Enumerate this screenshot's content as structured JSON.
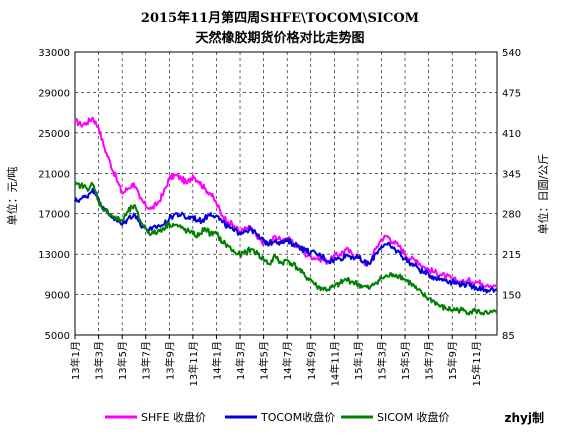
{
  "chart_data": {
    "type": "line",
    "title": "2015年11月第四周SHFE\\TOCOM\\SICOM",
    "subtitle": "天然橡胶期货价格对比走势图",
    "ylabel_left": "单位：元/吨",
    "ylabel_right": "单位：日圆/公斤",
    "yticks_left": [
      "33000",
      "29000",
      "25000",
      "21000",
      "17000",
      "13000",
      "9000",
      "5000"
    ],
    "yticks_right": [
      "540",
      "475",
      "410",
      "345",
      "280",
      "215",
      "150",
      "85"
    ],
    "ylim_left": [
      5000,
      33000
    ],
    "ylim_right": [
      85,
      540
    ],
    "x_labels": [
      "13年1月",
      "13年3月",
      "13年5月",
      "13年7月",
      "13年9月",
      "13年11月",
      "14年1月",
      "14年3月",
      "14年5月",
      "14年7月",
      "14年9月",
      "14年11月",
      "15年1月",
      "15年3月",
      "15年5月",
      "15年7月",
      "15年9月",
      "15年11月"
    ],
    "x_range_months": [
      0,
      35.8
    ],
    "credit": "zhyj制",
    "grid": true,
    "legend_position": "bottom",
    "series": [
      {
        "name": "SHFE 收盘价",
        "axis": "left",
        "color": "#ff00ff",
        "points": [
          [
            0,
            26200
          ],
          [
            0.5,
            25800
          ],
          [
            1,
            26000
          ],
          [
            1.5,
            26500
          ],
          [
            2,
            25500
          ],
          [
            2.5,
            23500
          ],
          [
            3,
            22000
          ],
          [
            3.5,
            20500
          ],
          [
            4,
            19000
          ],
          [
            4.5,
            19500
          ],
          [
            5,
            20000
          ],
          [
            5.5,
            18500
          ],
          [
            6,
            17800
          ],
          [
            6.5,
            17500
          ],
          [
            7,
            18000
          ],
          [
            7.5,
            19000
          ],
          [
            8,
            20500
          ],
          [
            8.5,
            20800
          ],
          [
            9,
            20500
          ],
          [
            9.5,
            20000
          ],
          [
            10,
            20800
          ],
          [
            10.5,
            20200
          ],
          [
            11,
            19500
          ],
          [
            11.5,
            19000
          ],
          [
            12,
            18000
          ],
          [
            12.5,
            16800
          ],
          [
            13,
            16200
          ],
          [
            13.5,
            15800
          ],
          [
            14,
            15200
          ],
          [
            14.5,
            15500
          ],
          [
            15,
            15600
          ],
          [
            15.5,
            14500
          ],
          [
            16,
            14200
          ],
          [
            16.5,
            14000
          ],
          [
            17,
            14800
          ],
          [
            17.5,
            14300
          ],
          [
            18,
            14600
          ],
          [
            18.5,
            14000
          ],
          [
            19,
            13800
          ],
          [
            19.5,
            13000
          ],
          [
            20,
            12800
          ],
          [
            20.5,
            12600
          ],
          [
            21,
            12500
          ],
          [
            21.5,
            12200
          ],
          [
            22,
            12800
          ],
          [
            22.5,
            13000
          ],
          [
            23,
            13500
          ],
          [
            23.5,
            13000
          ],
          [
            24,
            12800
          ],
          [
            24.5,
            12200
          ],
          [
            25,
            12000
          ],
          [
            25.5,
            13500
          ],
          [
            26,
            14500
          ],
          [
            26.5,
            14800
          ],
          [
            27,
            14200
          ],
          [
            27.5,
            13800
          ],
          [
            28,
            13000
          ],
          [
            28.5,
            12500
          ],
          [
            29,
            12400
          ],
          [
            29.5,
            11800
          ],
          [
            30,
            11500
          ],
          [
            30.5,
            11200
          ],
          [
            31,
            11000
          ],
          [
            31.5,
            10800
          ],
          [
            32,
            10500
          ],
          [
            32.5,
            10300
          ],
          [
            33,
            10200
          ],
          [
            33.5,
            10400
          ],
          [
            34,
            10300
          ],
          [
            34.5,
            10100
          ],
          [
            35,
            10000
          ],
          [
            35.8,
            10000
          ]
        ]
      },
      {
        "name": "TOCOM收盘价",
        "axis": "right",
        "color": "#0000dd",
        "points": [
          [
            0,
            300
          ],
          [
            0.5,
            304
          ],
          [
            1,
            308
          ],
          [
            1.5,
            320
          ],
          [
            2,
            305
          ],
          [
            2.5,
            285
          ],
          [
            3,
            278
          ],
          [
            3.5,
            270
          ],
          [
            4,
            262
          ],
          [
            4.5,
            272
          ],
          [
            5,
            280
          ],
          [
            5.5,
            265
          ],
          [
            6,
            256
          ],
          [
            6.5,
            254
          ],
          [
            7,
            260
          ],
          [
            7.5,
            262
          ],
          [
            8,
            272
          ],
          [
            8.5,
            280
          ],
          [
            9,
            278
          ],
          [
            9.5,
            273
          ],
          [
            10,
            275
          ],
          [
            10.5,
            268
          ],
          [
            11,
            272
          ],
          [
            11.5,
            281
          ],
          [
            12,
            277
          ],
          [
            12.5,
            266
          ],
          [
            13,
            259
          ],
          [
            13.5,
            252
          ],
          [
            14,
            250
          ],
          [
            14.5,
            253
          ],
          [
            15,
            255
          ],
          [
            15.5,
            244
          ],
          [
            16,
            236
          ],
          [
            16.5,
            232
          ],
          [
            17,
            238
          ],
          [
            17.5,
            233
          ],
          [
            18,
            236
          ],
          [
            18.5,
            232
          ],
          [
            19,
            228
          ],
          [
            19.5,
            221
          ],
          [
            20,
            218
          ],
          [
            20.5,
            215
          ],
          [
            21,
            211
          ],
          [
            21.5,
            204
          ],
          [
            22,
            206
          ],
          [
            22.5,
            208
          ],
          [
            23,
            214
          ],
          [
            23.5,
            211
          ],
          [
            24,
            209
          ],
          [
            24.5,
            202
          ],
          [
            25,
            199
          ],
          [
            25.5,
            216
          ],
          [
            26,
            228
          ],
          [
            26.5,
            230
          ],
          [
            27,
            224
          ],
          [
            27.5,
            218
          ],
          [
            28,
            207
          ],
          [
            28.5,
            200
          ],
          [
            29,
            195
          ],
          [
            29.5,
            186
          ],
          [
            30,
            183
          ],
          [
            30.5,
            178
          ],
          [
            31,
            175
          ],
          [
            31.5,
            174
          ],
          [
            32,
            170
          ],
          [
            32.5,
            168
          ],
          [
            33,
            167
          ],
          [
            33.5,
            164
          ],
          [
            34,
            162
          ],
          [
            34.5,
            160
          ],
          [
            35,
            157
          ],
          [
            35.8,
            158
          ]
        ]
      },
      {
        "name": "SICOM 收盘价",
        "axis": "left",
        "color": "#008000",
        "points": [
          [
            0,
            19800
          ],
          [
            0.5,
            19800
          ],
          [
            1,
            19500
          ],
          [
            1.5,
            19900
          ],
          [
            2,
            18200
          ],
          [
            2.5,
            17400
          ],
          [
            3,
            17000
          ],
          [
            3.5,
            16500
          ],
          [
            4,
            16300
          ],
          [
            4.5,
            17200
          ],
          [
            5,
            17800
          ],
          [
            5.5,
            16400
          ],
          [
            6,
            15500
          ],
          [
            6.5,
            15000
          ],
          [
            7,
            15200
          ],
          [
            7.5,
            15600
          ],
          [
            8,
            16000
          ],
          [
            8.5,
            15900
          ],
          [
            9,
            15600
          ],
          [
            9.5,
            15300
          ],
          [
            10,
            15000
          ],
          [
            10.5,
            14800
          ],
          [
            11,
            15600
          ],
          [
            11.5,
            15000
          ],
          [
            12,
            15000
          ],
          [
            12.5,
            14200
          ],
          [
            13,
            13800
          ],
          [
            13.5,
            13200
          ],
          [
            14,
            12900
          ],
          [
            14.5,
            13200
          ],
          [
            15,
            13500
          ],
          [
            15.5,
            13000
          ],
          [
            16,
            12500
          ],
          [
            16.5,
            12000
          ],
          [
            17,
            12800
          ],
          [
            17.5,
            12100
          ],
          [
            18,
            12400
          ],
          [
            18.5,
            12000
          ],
          [
            19,
            11500
          ],
          [
            19.5,
            10800
          ],
          [
            20,
            10500
          ],
          [
            20.5,
            9800
          ],
          [
            21,
            9600
          ],
          [
            21.5,
            9500
          ],
          [
            22,
            9800
          ],
          [
            22.5,
            10100
          ],
          [
            23,
            10500
          ],
          [
            23.5,
            10300
          ],
          [
            24,
            10000
          ],
          [
            24.5,
            9800
          ],
          [
            25,
            9600
          ],
          [
            25.5,
            10200
          ],
          [
            26,
            10600
          ],
          [
            26.5,
            10800
          ],
          [
            27,
            11000
          ],
          [
            27.5,
            10900
          ],
          [
            28,
            10500
          ],
          [
            28.5,
            10100
          ],
          [
            29,
            9500
          ],
          [
            29.5,
            9000
          ],
          [
            30,
            8600
          ],
          [
            30.5,
            8300
          ],
          [
            31,
            7800
          ],
          [
            31.5,
            7600
          ],
          [
            32,
            7500
          ],
          [
            32.5,
            7500
          ],
          [
            33,
            7400
          ],
          [
            33.5,
            7300
          ],
          [
            34,
            7400
          ],
          [
            34.5,
            7200
          ],
          [
            35,
            7100
          ],
          [
            35.8,
            7200
          ]
        ]
      }
    ]
  }
}
